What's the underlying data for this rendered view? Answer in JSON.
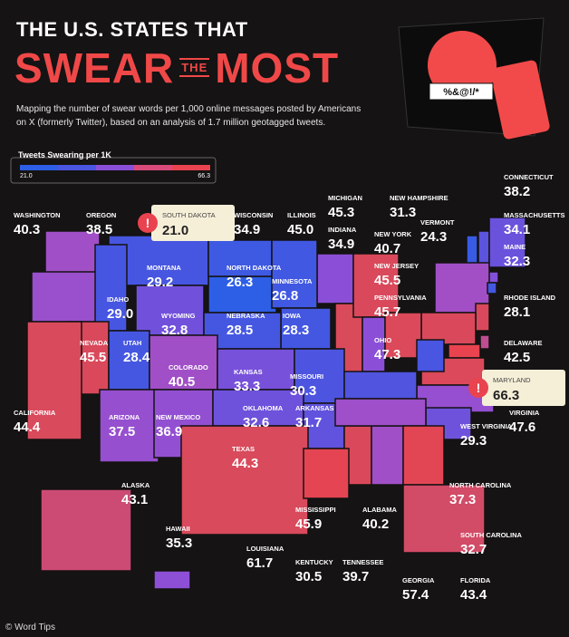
{
  "header": {
    "title_line1": "THE U.S. STATES THAT",
    "title_word1": "SWEAR",
    "title_word2": "THE",
    "title_word3": "MOST",
    "subtitle": "Mapping the number of swear words per 1,000 online messages posted by Americans on X (formerly Twitter), based on an analysis of 1.7 million geotagged tweets."
  },
  "illustration": {
    "speech": "%&@!/*"
  },
  "legend": {
    "title": "Tweets Swearing per 1K",
    "min": "21.0",
    "max": "66.3"
  },
  "callout_mark": "!",
  "states": [
    {
      "name": "WASHINGTON",
      "value": "40.3"
    },
    {
      "name": "OREGON",
      "value": "38.5"
    },
    {
      "name": "SOUTH DAKOTA",
      "value": "21.0"
    },
    {
      "name": "WISCONSIN",
      "value": "34.9"
    },
    {
      "name": "ILLINOIS",
      "value": "45.0"
    },
    {
      "name": "MICHIGAN",
      "value": "45.3"
    },
    {
      "name": "NEW HAMPSHIRE",
      "value": "31.3"
    },
    {
      "name": "CONNECTICUT",
      "value": "38.2"
    },
    {
      "name": "VERMONT",
      "value": "24.3"
    },
    {
      "name": "MASSACHUSETTS",
      "value": "34.1"
    },
    {
      "name": "INDIANA",
      "value": "34.9"
    },
    {
      "name": "NEW YORK",
      "value": "40.7"
    },
    {
      "name": "MAINE",
      "value": "32.3"
    },
    {
      "name": "MONTANA",
      "value": "29.2"
    },
    {
      "name": "NORTH DAKOTA",
      "value": "26.3"
    },
    {
      "name": "MINNESOTA",
      "value": "26.8"
    },
    {
      "name": "NEW JERSEY",
      "value": "45.5"
    },
    {
      "name": "IDAHO",
      "value": "29.0"
    },
    {
      "name": "PENNSYLVANIA",
      "value": "45.7"
    },
    {
      "name": "RHODE ISLAND",
      "value": "28.1"
    },
    {
      "name": "WYOMING",
      "value": "32.8"
    },
    {
      "name": "IOWA",
      "value": "28.3"
    },
    {
      "name": "NEVADA",
      "value": "45.5"
    },
    {
      "name": "UTAH",
      "value": "28.4"
    },
    {
      "name": "NEBRASKA",
      "value": "28.5"
    },
    {
      "name": "OHIO",
      "value": "47.3"
    },
    {
      "name": "DELAWARE",
      "value": "42.5"
    },
    {
      "name": "COLORADO",
      "value": "40.5"
    },
    {
      "name": "KANSAS",
      "value": "33.3"
    },
    {
      "name": "MISSOURI",
      "value": "30.3"
    },
    {
      "name": "MARYLAND",
      "value": "66.3"
    },
    {
      "name": "CALIFORNIA",
      "value": "44.4"
    },
    {
      "name": "ARIZONA",
      "value": "37.5"
    },
    {
      "name": "NEW MEXICO",
      "value": "36.9"
    },
    {
      "name": "OKLAHOMA",
      "value": "32.6"
    },
    {
      "name": "ARKANSAS",
      "value": "31.7"
    },
    {
      "name": "VIRGINIA",
      "value": "47.6"
    },
    {
      "name": "WEST VIRGINIA",
      "value": "29.3"
    },
    {
      "name": "TEXAS",
      "value": "44.3"
    },
    {
      "name": "NORTH CAROLINA",
      "value": "37.3"
    },
    {
      "name": "ALASKA",
      "value": "43.1"
    },
    {
      "name": "MISSISSIPPI",
      "value": "45.9"
    },
    {
      "name": "ALABAMA",
      "value": "40.2"
    },
    {
      "name": "HAWAII",
      "value": "35.3"
    },
    {
      "name": "SOUTH CAROLINA",
      "value": "32.7"
    },
    {
      "name": "LOUISIANA",
      "value": "61.7"
    },
    {
      "name": "KENTUCKY",
      "value": "30.5"
    },
    {
      "name": "TENNESSEE",
      "value": "39.7"
    },
    {
      "name": "GEORGIA",
      "value": "57.4"
    },
    {
      "name": "FLORIDA",
      "value": "43.4"
    }
  ],
  "footer": "© Word Tips"
}
